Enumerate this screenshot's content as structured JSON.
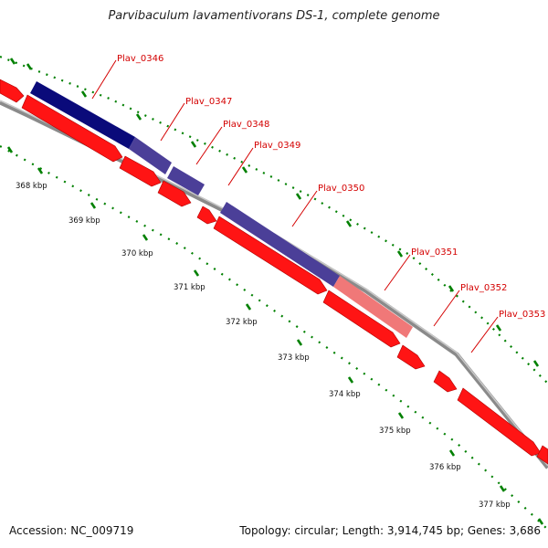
{
  "title": "Parvibaculum lavamentivorans DS-1, complete genome",
  "footer": {
    "accession": "Accession: NC_009719",
    "topology": "Topology: circular; Length: 3,914,745 bp; Genes: 3,686"
  },
  "colors": {
    "cds_forward": "#ff0000",
    "highlight_dark": "#0a0a7a",
    "highlight_mid": "#4b3f98",
    "highlight_pink": "#f07878",
    "backbone": "#808080",
    "tick": "#008000",
    "label": "#d40000"
  },
  "genes": [
    "Plav_0346",
    "Plav_0347",
    "Plav_0348",
    "Plav_0349",
    "Plav_0350",
    "Plav_0351",
    "Plav_0352",
    "Plav_0353"
  ],
  "kbp_labels": [
    "368 kbp",
    "369 kbp",
    "370 kbp",
    "371 kbp",
    "372 kbp",
    "373 kbp",
    "374 kbp",
    "375 kbp",
    "376 kbp",
    "377 kbp"
  ]
}
